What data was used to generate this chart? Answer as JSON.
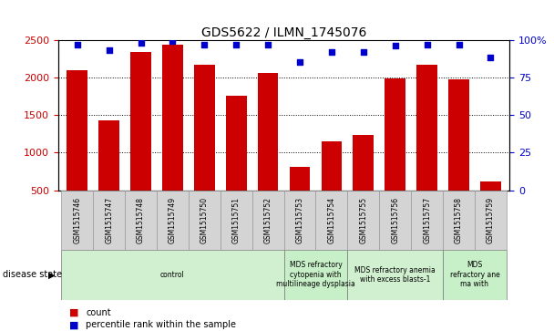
{
  "title": "GDS5622 / ILMN_1745076",
  "samples": [
    "GSM1515746",
    "GSM1515747",
    "GSM1515748",
    "GSM1515749",
    "GSM1515750",
    "GSM1515751",
    "GSM1515752",
    "GSM1515753",
    "GSM1515754",
    "GSM1515755",
    "GSM1515756",
    "GSM1515757",
    "GSM1515758",
    "GSM1515759"
  ],
  "counts": [
    2090,
    1430,
    2340,
    2440,
    2170,
    1750,
    2060,
    810,
    1150,
    1240,
    1990,
    2170,
    1980,
    620
  ],
  "percentile_ranks": [
    97,
    93,
    98,
    99,
    97,
    97,
    97,
    85,
    92,
    92,
    96,
    97,
    97,
    88
  ],
  "disease_groups": [
    {
      "label": "control",
      "start": 0,
      "end": 7,
      "color": "#d0f0d0"
    },
    {
      "label": "MDS refractory\ncytopenia with\nmultilineage dysplasia",
      "start": 7,
      "end": 9,
      "color": "#c8f0c8"
    },
    {
      "label": "MDS refractory anemia\nwith excess blasts-1",
      "start": 9,
      "end": 12,
      "color": "#d0f0d0"
    },
    {
      "label": "MDS\nrefractory ane\nma with",
      "start": 12,
      "end": 14,
      "color": "#c8f0c8"
    }
  ],
  "bar_color": "#cc0000",
  "dot_color": "#0000cc",
  "ylim_left": [
    500,
    2500
  ],
  "ylim_right": [
    0,
    100
  ],
  "yticks_left": [
    500,
    1000,
    1500,
    2000,
    2500
  ],
  "yticks_right": [
    0,
    25,
    50,
    75,
    100
  ],
  "yticklabels_right": [
    "0",
    "25",
    "50",
    "75",
    "100%"
  ],
  "ylabel_left_color": "#cc0000",
  "ylabel_right_color": "#0000cc",
  "legend_count_label": "count",
  "legend_percentile_label": "percentile rank within the sample",
  "disease_state_label": "disease state"
}
